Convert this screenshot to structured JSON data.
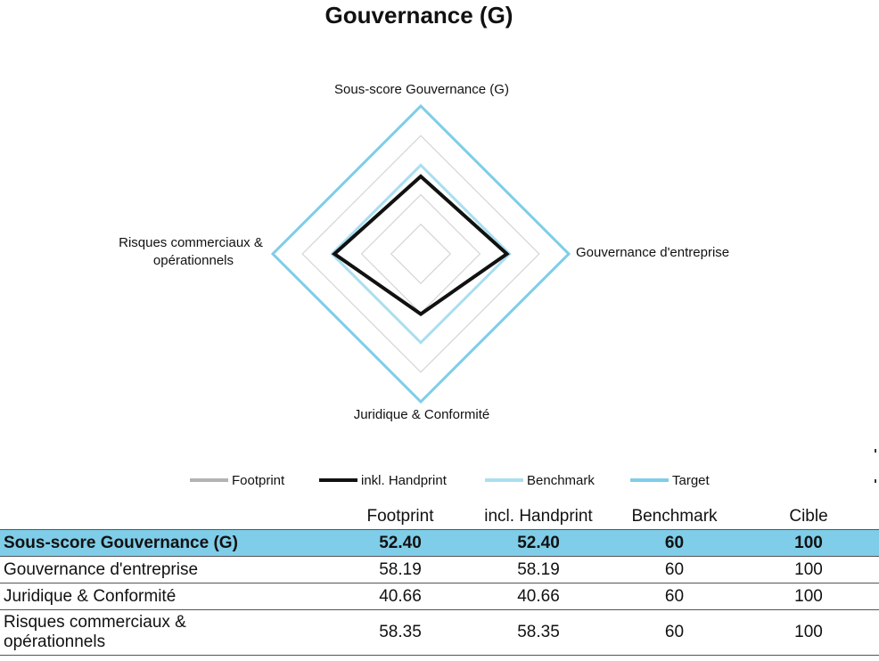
{
  "chart_data": {
    "type": "radar",
    "title": "Gouvernance (G)",
    "axes": [
      "Sous-score Gouvernance (G)",
      "Gouvernance d'entreprise",
      "Juridique & Conformité",
      "Risques commerciaux & opérationnels"
    ],
    "range": [
      0,
      100
    ],
    "grid_levels": [
      20,
      40,
      60,
      80,
      100
    ],
    "series": [
      {
        "name": "Footprint",
        "values": [
          52.4,
          58.19,
          40.66,
          58.35
        ],
        "color": "#b3b3b3"
      },
      {
        "name": "inkl. Handprint",
        "values": [
          52.4,
          58.19,
          40.66,
          58.35
        ],
        "color": "#111111"
      },
      {
        "name": "Benchmark",
        "values": [
          60,
          60,
          60,
          60
        ],
        "color": "#a9dff0"
      },
      {
        "name": "Target",
        "values": [
          100,
          100,
          100,
          100
        ],
        "color": "#7fcde8"
      }
    ],
    "legend_position": "bottom"
  },
  "table": {
    "headers": [
      "",
      "Footprint",
      "incl. Handprint",
      "Benchmark",
      "Cible"
    ],
    "rows": [
      {
        "label": "Sous-score Gouvernance (G)",
        "footprint": "52.40",
        "handprint": "52.40",
        "benchmark": "60",
        "cible": "100"
      },
      {
        "label": "Gouvernance d'entreprise",
        "footprint": "58.19",
        "handprint": "58.19",
        "benchmark": "60",
        "cible": "100"
      },
      {
        "label": "Juridique & Conformité",
        "footprint": "40.66",
        "handprint": "40.66",
        "benchmark": "60",
        "cible": "100"
      },
      {
        "label": "Risques commerciaux & opérationnels",
        "footprint": "58.35",
        "handprint": "58.35",
        "benchmark": "60",
        "cible": "100"
      }
    ]
  }
}
